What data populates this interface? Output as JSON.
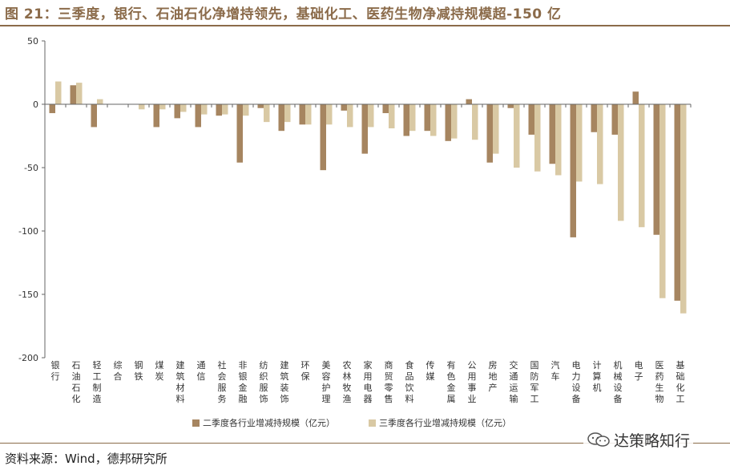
{
  "title": "图 21：三季度，银行、石油石化净增持领先，基础化工、医药生物净减持规模超-150 亿",
  "source": "资料来源：Wind，德邦研究所",
  "watermark": "达策略知行",
  "colors": {
    "series1": "#a68560",
    "series2": "#d9c9a4",
    "accent": "#8b6b4a",
    "axis": "#666666"
  },
  "chart_data": {
    "type": "bar",
    "categories": [
      "银行",
      "石油石化",
      "轻工制造",
      "综合",
      "钢铁",
      "煤炭",
      "建筑材料",
      "通信",
      "社会服务",
      "非银金融",
      "纺织服饰",
      "建筑装饰",
      "环保",
      "美容护理",
      "农林牧渔",
      "家用电器",
      "商贸零售",
      "食品饮料",
      "传媒",
      "有色金属",
      "公用事业",
      "房地产",
      "交通运输",
      "国防军工",
      "汽车",
      "电力设备",
      "计算机",
      "机械设备",
      "电子",
      "医药生物",
      "基础化工"
    ],
    "series": [
      {
        "name": "二季度各行业增减持规模（亿元）",
        "values": [
          -7,
          15,
          -18,
          0,
          0,
          -18,
          -11,
          -18,
          -9,
          -46,
          -3,
          -21,
          -16,
          -52,
          -5,
          -39,
          -7,
          -25,
          -21,
          -29,
          4,
          -46,
          -3,
          -24,
          -47,
          -105,
          -22,
          -24,
          10,
          -103,
          -155
        ]
      },
      {
        "name": "三季度各行业增减持规模（亿元）",
        "values": [
          18,
          17,
          4,
          0,
          -4,
          -4,
          -6,
          -8,
          -8,
          -9,
          -14,
          -14,
          -16,
          -16,
          -18,
          -18,
          -19,
          -21,
          -25,
          -27,
          -28,
          -39,
          -50,
          -53,
          -56,
          -61,
          -63,
          -92,
          -97,
          -153,
          -165
        ]
      }
    ],
    "ylim": [
      -200,
      50
    ],
    "yticks": [
      50,
      0,
      -50,
      -100,
      -150,
      -200
    ],
    "grid": false,
    "legend": "bottom"
  }
}
